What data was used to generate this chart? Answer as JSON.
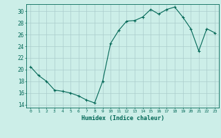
{
  "x": [
    0,
    1,
    2,
    3,
    4,
    5,
    6,
    7,
    8,
    9,
    10,
    11,
    12,
    13,
    14,
    15,
    16,
    17,
    18,
    19,
    20,
    21,
    22,
    23
  ],
  "y": [
    20.5,
    19.0,
    18.0,
    16.5,
    16.3,
    16.0,
    15.5,
    14.8,
    14.3,
    18.0,
    24.5,
    26.7,
    28.3,
    28.4,
    29.0,
    30.3,
    29.5,
    30.3,
    30.7,
    29.0,
    27.0,
    23.2,
    27.0,
    26.3
  ],
  "line_color": "#006655",
  "marker": "+",
  "marker_size": 3,
  "xlabel": "Humidex (Indice chaleur)",
  "xlim": [
    -0.5,
    23.5
  ],
  "ylim": [
    13.5,
    31.2
  ],
  "yticks": [
    14,
    16,
    18,
    20,
    22,
    24,
    26,
    28,
    30
  ],
  "xticks": [
    0,
    1,
    2,
    3,
    4,
    5,
    6,
    7,
    8,
    9,
    10,
    11,
    12,
    13,
    14,
    15,
    16,
    17,
    18,
    19,
    20,
    21,
    22,
    23
  ],
  "background_color": "#cceee8",
  "grid_color": "#aacccc",
  "tick_color": "#006655",
  "label_color": "#006655",
  "font_family": "monospace"
}
